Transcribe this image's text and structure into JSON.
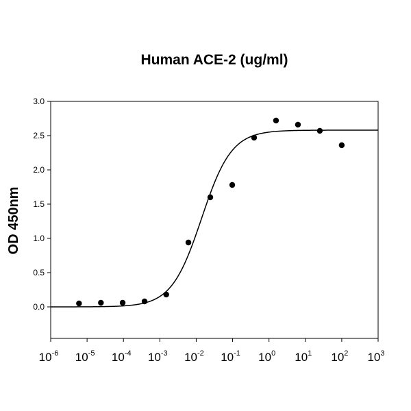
{
  "chart_data": {
    "type": "scatter",
    "title": "Human ACE-2 (ug/ml)",
    "xlabel": "",
    "ylabel": "OD 450nm",
    "xscale": "log",
    "xlim": [
      1e-06,
      1000
    ],
    "ylim": [
      -0.46,
      3.0
    ],
    "grid": false,
    "xticks": [
      {
        "base": "10",
        "exp": "-6"
      },
      {
        "base": "10",
        "exp": "-5"
      },
      {
        "base": "10",
        "exp": "-4"
      },
      {
        "base": "10",
        "exp": "-3"
      },
      {
        "base": "10",
        "exp": "-2"
      },
      {
        "base": "10",
        "exp": "-1"
      },
      {
        "base": "10",
        "exp": "0"
      },
      {
        "base": "10",
        "exp": "1"
      },
      {
        "base": "10",
        "exp": "2"
      },
      {
        "base": "10",
        "exp": "3"
      }
    ],
    "yticks": [
      "0.0",
      "0.5",
      "1.0",
      "1.5",
      "2.0",
      "2.5",
      "3.0"
    ],
    "points": {
      "x": [
        6e-06,
        2.4e-05,
        9.5e-05,
        0.00038,
        0.0015,
        0.0061,
        0.0244,
        0.0977,
        0.39,
        1.5625,
        6.25,
        25,
        100
      ],
      "y": [
        0.05,
        0.06,
        0.06,
        0.08,
        0.18,
        0.94,
        1.6,
        1.78,
        2.47,
        2.72,
        2.66,
        2.57,
        2.36
      ]
    },
    "fit_curve": {
      "model": "4PL",
      "bottom": 0.0,
      "top": 2.58,
      "ec50": 0.014,
      "hill": 1.05
    },
    "colors": {
      "points": "#000000",
      "curve": "#000000"
    }
  }
}
